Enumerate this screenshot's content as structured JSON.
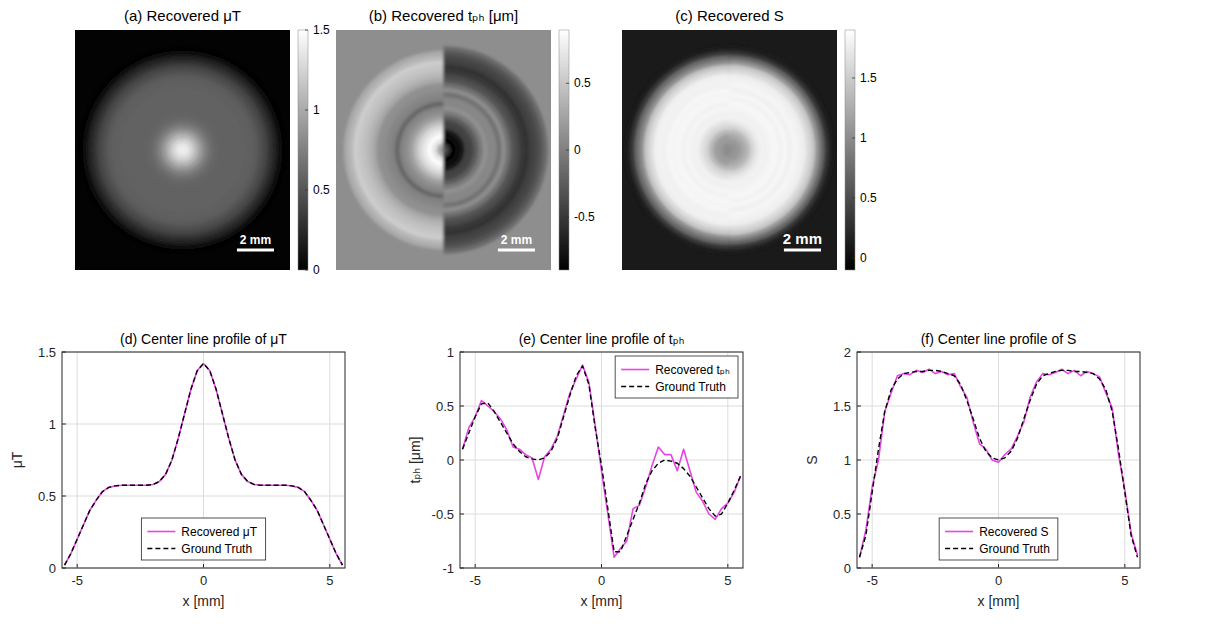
{
  "chart_data": [
    {
      "type": "image",
      "title": "(a) Recovered μT",
      "x": [
        -5.5,
        -5.25,
        -5,
        -4.75,
        -4.5,
        -4.25,
        -4,
        -3.75,
        -3.5,
        -3.25,
        -3,
        -2.75,
        -2.5,
        -2.25,
        -2,
        -1.75,
        -1.5,
        -1.25,
        -1,
        -0.75,
        -0.5,
        -0.25,
        0,
        0.25,
        0.5,
        0.75,
        1,
        1.25,
        1.5,
        1.75,
        2,
        2.25,
        2.5,
        2.75,
        3,
        3.25,
        3.5,
        3.75,
        4,
        4.25,
        4.5,
        4.75,
        5,
        5.25,
        5.5
      ],
      "values": [
        0.02,
        0.1,
        0.2,
        0.3,
        0.4,
        0.47,
        0.53,
        0.56,
        0.57,
        0.575,
        0.575,
        0.575,
        0.575,
        0.575,
        0.58,
        0.6,
        0.65,
        0.75,
        0.9,
        1.07,
        1.24,
        1.37,
        1.42,
        1.37,
        1.24,
        1.07,
        0.9,
        0.75,
        0.65,
        0.6,
        0.58,
        0.575,
        0.575,
        0.575,
        0.575,
        0.575,
        0.57,
        0.56,
        0.53,
        0.47,
        0.4,
        0.3,
        0.2,
        0.1,
        0.02
      ],
      "xlim": [
        -5.8,
        5.8
      ],
      "ylim": [
        -6.5,
        6.5
      ],
      "colorbar": {
        "range": [
          0,
          1.5
        ],
        "ticks": [
          0,
          0.5,
          1,
          1.5
        ]
      },
      "scale_bar": {
        "length": 2,
        "label": "2 mm"
      }
    },
    {
      "type": "image",
      "title": "(b) Recovered tₚₕ [μm]",
      "x": [
        -5.5,
        -5.25,
        -5,
        -4.75,
        -4.5,
        -4.25,
        -4,
        -3.75,
        -3.5,
        -3.25,
        -3,
        -2.75,
        -2.5,
        -2.25,
        -2,
        -1.75,
        -1.5,
        -1.25,
        -1,
        -0.75,
        -0.5,
        -0.25,
        0,
        0.25,
        0.5,
        0.75,
        1,
        1.25,
        1.5,
        1.75,
        2,
        2.25,
        2.5,
        2.75,
        3,
        3.25,
        3.5,
        3.75,
        4,
        4.25,
        4.5,
        4.75,
        5,
        5.25,
        5.5
      ],
      "values": [
        0.1,
        0.3,
        0.4,
        0.55,
        0.5,
        0.45,
        0.38,
        0.28,
        0.12,
        0.1,
        0.05,
        0.02,
        -0.18,
        0.03,
        0.1,
        0.22,
        0.42,
        0.62,
        0.75,
        0.88,
        0.72,
        0.32,
        -0.1,
        -0.5,
        -0.9,
        -0.82,
        -0.75,
        -0.45,
        -0.42,
        -0.25,
        -0.05,
        0.12,
        0.05,
        0.05,
        -0.1,
        0.1,
        -0.1,
        -0.3,
        -0.38,
        -0.5,
        -0.55,
        -0.45,
        -0.4,
        -0.3,
        -0.15
      ],
      "xlim": [
        -5.8,
        5.8
      ],
      "ylim": [
        -6.5,
        6.5
      ],
      "colorbar": {
        "range": [
          -0.9,
          0.9
        ],
        "ticks": [
          -0.5,
          0,
          0.5
        ]
      },
      "scale_bar": {
        "length": 2,
        "label": "2 mm"
      }
    },
    {
      "type": "image",
      "title": "(c) Recovered S",
      "x": [
        -5.5,
        -5.25,
        -5,
        -4.75,
        -4.5,
        -4.25,
        -4,
        -3.75,
        -3.5,
        -3.25,
        -3,
        -2.75,
        -2.5,
        -2.25,
        -2,
        -1.75,
        -1.5,
        -1.25,
        -1,
        -0.75,
        -0.5,
        -0.25,
        0,
        0.25,
        0.5,
        0.75,
        1,
        1.25,
        1.5,
        1.75,
        2,
        2.25,
        2.5,
        2.75,
        3,
        3.25,
        3.5,
        3.75,
        4,
        4.25,
        4.5,
        4.75,
        5,
        5.25,
        5.5
      ],
      "values": [
        0.1,
        0.35,
        0.75,
        1.0,
        1.45,
        1.62,
        1.78,
        1.8,
        1.79,
        1.83,
        1.81,
        1.84,
        1.8,
        1.82,
        1.79,
        1.8,
        1.68,
        1.58,
        1.35,
        1.15,
        1.1,
        1.0,
        0.98,
        1.05,
        1.1,
        1.22,
        1.35,
        1.58,
        1.72,
        1.8,
        1.79,
        1.81,
        1.84,
        1.8,
        1.83,
        1.78,
        1.82,
        1.8,
        1.77,
        1.62,
        1.48,
        1.05,
        0.72,
        0.32,
        0.12
      ],
      "xlim": [
        -5.8,
        5.8
      ],
      "ylim": [
        -6.5,
        6.5
      ],
      "colorbar": {
        "range": [
          -0.1,
          1.9
        ],
        "ticks": [
          0,
          0.5,
          1,
          1.5
        ]
      },
      "scale_bar": {
        "length": 2,
        "label": "2 mm"
      }
    },
    {
      "type": "line",
      "title": "(d) Center line profile of μT",
      "x_label": "x [mm]",
      "y_label": "μT",
      "x": [
        -5.5,
        -5.25,
        -5,
        -4.75,
        -4.5,
        -4.25,
        -4,
        -3.75,
        -3.5,
        -3.25,
        -3,
        -2.75,
        -2.5,
        -2.25,
        -2,
        -1.75,
        -1.5,
        -1.25,
        -1,
        -0.75,
        -0.5,
        -0.25,
        0,
        0.25,
        0.5,
        0.75,
        1,
        1.25,
        1.5,
        1.75,
        2,
        2.25,
        2.5,
        2.75,
        3,
        3.25,
        3.5,
        3.75,
        4,
        4.25,
        4.5,
        4.75,
        5,
        5.25,
        5.5
      ],
      "series": [
        {
          "name": "Recovered μT",
          "color": "#e645e6",
          "line_style": "solid",
          "values": [
            0.02,
            0.1,
            0.2,
            0.3,
            0.4,
            0.47,
            0.53,
            0.56,
            0.57,
            0.575,
            0.575,
            0.575,
            0.575,
            0.575,
            0.58,
            0.6,
            0.65,
            0.75,
            0.9,
            1.07,
            1.24,
            1.37,
            1.42,
            1.37,
            1.24,
            1.07,
            0.9,
            0.75,
            0.65,
            0.6,
            0.58,
            0.575,
            0.575,
            0.575,
            0.575,
            0.575,
            0.57,
            0.56,
            0.53,
            0.47,
            0.4,
            0.3,
            0.2,
            0.1,
            0.02
          ]
        },
        {
          "name": "Ground Truth",
          "color": "#000000",
          "line_style": "dashed",
          "values": [
            0.02,
            0.1,
            0.2,
            0.3,
            0.4,
            0.47,
            0.53,
            0.56,
            0.57,
            0.575,
            0.575,
            0.575,
            0.575,
            0.575,
            0.58,
            0.6,
            0.65,
            0.75,
            0.9,
            1.07,
            1.24,
            1.37,
            1.42,
            1.37,
            1.24,
            1.07,
            0.9,
            0.75,
            0.65,
            0.6,
            0.58,
            0.575,
            0.575,
            0.575,
            0.575,
            0.575,
            0.57,
            0.56,
            0.53,
            0.47,
            0.4,
            0.3,
            0.2,
            0.1,
            0.02
          ]
        }
      ],
      "xlim": [
        -5.6,
        5.6
      ],
      "xticks": [
        -5,
        0,
        5
      ],
      "ylim": [
        0,
        1.5
      ],
      "yticks": [
        0,
        0.5,
        1,
        1.5
      ],
      "grid": true,
      "legend": "lower center"
    },
    {
      "type": "line",
      "title": "(e) Center line profile of tₚₕ",
      "x_label": "x [mm]",
      "y_label": "tₚₕ [μm]",
      "x": [
        -5.5,
        -5.25,
        -5,
        -4.75,
        -4.5,
        -4.25,
        -4,
        -3.75,
        -3.5,
        -3.25,
        -3,
        -2.75,
        -2.5,
        -2.25,
        -2,
        -1.75,
        -1.5,
        -1.25,
        -1,
        -0.75,
        -0.5,
        -0.25,
        0,
        0.25,
        0.5,
        0.75,
        1,
        1.25,
        1.5,
        1.75,
        2,
        2.25,
        2.5,
        2.75,
        3,
        3.25,
        3.5,
        3.75,
        4,
        4.25,
        4.5,
        4.75,
        5,
        5.25,
        5.5
      ],
      "series": [
        {
          "name": "Recovered tₚₕ",
          "color": "#e645e6",
          "line_style": "solid",
          "values": [
            0.1,
            0.3,
            0.4,
            0.55,
            0.5,
            0.45,
            0.38,
            0.28,
            0.12,
            0.1,
            0.05,
            0.02,
            -0.18,
            0.03,
            0.1,
            0.22,
            0.42,
            0.62,
            0.75,
            0.88,
            0.72,
            0.32,
            -0.1,
            -0.5,
            -0.9,
            -0.82,
            -0.75,
            -0.45,
            -0.42,
            -0.25,
            -0.05,
            0.12,
            0.05,
            0.05,
            -0.1,
            0.1,
            -0.1,
            -0.3,
            -0.38,
            -0.5,
            -0.55,
            -0.45,
            -0.4,
            -0.3,
            -0.15
          ]
        },
        {
          "name": "Ground Truth",
          "color": "#000000",
          "line_style": "dashed",
          "values": [
            0.1,
            0.25,
            0.4,
            0.52,
            0.53,
            0.45,
            0.35,
            0.25,
            0.15,
            0.08,
            0.03,
            0.01,
            0.0,
            0.02,
            0.08,
            0.2,
            0.4,
            0.6,
            0.78,
            0.87,
            0.7,
            0.3,
            -0.05,
            -0.45,
            -0.85,
            -0.85,
            -0.7,
            -0.55,
            -0.4,
            -0.22,
            -0.1,
            -0.03,
            0.0,
            -0.01,
            -0.03,
            -0.08,
            -0.15,
            -0.25,
            -0.35,
            -0.45,
            -0.52,
            -0.5,
            -0.4,
            -0.28,
            -0.15
          ]
        }
      ],
      "xlim": [
        -5.6,
        5.6
      ],
      "xticks": [
        -5,
        0,
        5
      ],
      "ylim": [
        -1,
        1
      ],
      "yticks": [
        -1,
        -0.5,
        0,
        0.5,
        1
      ],
      "grid": true,
      "legend": "upper right"
    },
    {
      "type": "line",
      "title": "(f) Center line profile of S",
      "x_label": "x [mm]",
      "y_label": "S",
      "x": [
        -5.5,
        -5.25,
        -5,
        -4.75,
        -4.5,
        -4.25,
        -4,
        -3.75,
        -3.5,
        -3.25,
        -3,
        -2.75,
        -2.5,
        -2.25,
        -2,
        -1.75,
        -1.5,
        -1.25,
        -1,
        -0.75,
        -0.5,
        -0.25,
        0,
        0.25,
        0.5,
        0.75,
        1,
        1.25,
        1.5,
        1.75,
        2,
        2.25,
        2.5,
        2.75,
        3,
        3.25,
        3.5,
        3.75,
        4,
        4.25,
        4.5,
        4.75,
        5,
        5.25,
        5.5
      ],
      "series": [
        {
          "name": "Recovered S",
          "color": "#e645e6",
          "line_style": "solid",
          "values": [
            0.1,
            0.35,
            0.75,
            1.0,
            1.45,
            1.62,
            1.78,
            1.8,
            1.79,
            1.83,
            1.81,
            1.84,
            1.8,
            1.82,
            1.79,
            1.8,
            1.68,
            1.58,
            1.35,
            1.15,
            1.1,
            1.0,
            0.98,
            1.05,
            1.1,
            1.22,
            1.35,
            1.58,
            1.72,
            1.8,
            1.79,
            1.81,
            1.84,
            1.8,
            1.83,
            1.78,
            1.82,
            1.8,
            1.77,
            1.62,
            1.48,
            1.05,
            0.72,
            0.32,
            0.12
          ]
        },
        {
          "name": "Ground Truth",
          "color": "#000000",
          "line_style": "dashed",
          "values": [
            0.1,
            0.3,
            0.7,
            1.1,
            1.45,
            1.65,
            1.75,
            1.8,
            1.81,
            1.82,
            1.82,
            1.83,
            1.83,
            1.82,
            1.8,
            1.78,
            1.7,
            1.55,
            1.38,
            1.2,
            1.08,
            1.02,
            1.0,
            1.02,
            1.08,
            1.2,
            1.38,
            1.55,
            1.7,
            1.78,
            1.8,
            1.82,
            1.83,
            1.83,
            1.82,
            1.82,
            1.81,
            1.8,
            1.75,
            1.65,
            1.45,
            1.1,
            0.7,
            0.3,
            0.1
          ]
        }
      ],
      "xlim": [
        -5.6,
        5.6
      ],
      "xticks": [
        -5,
        0,
        5
      ],
      "ylim": [
        0,
        2
      ],
      "yticks": [
        0,
        0.5,
        1,
        1.5,
        2
      ],
      "grid": true,
      "legend": "lower center"
    }
  ]
}
